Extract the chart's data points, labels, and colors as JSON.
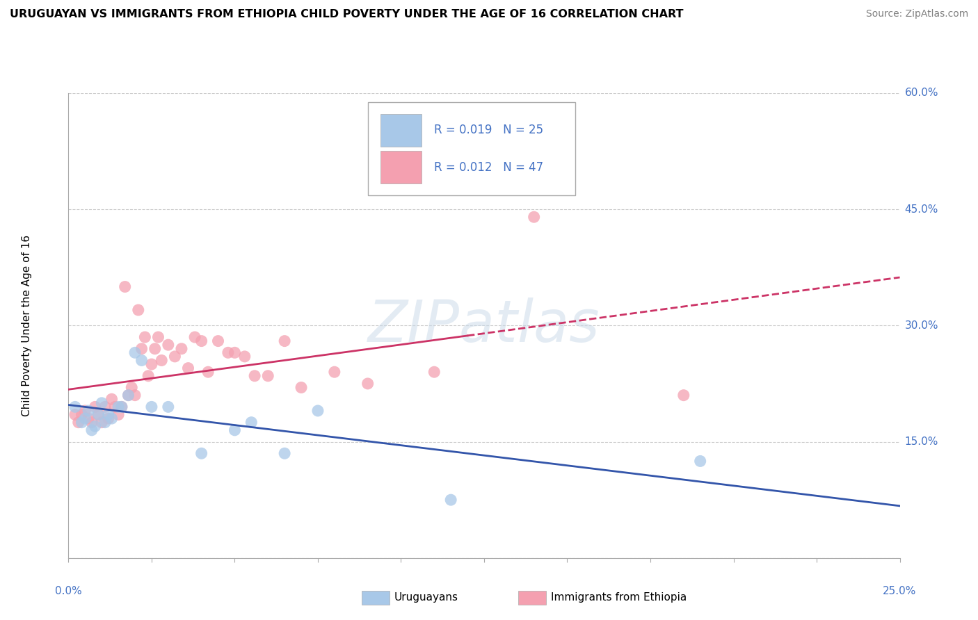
{
  "title": "URUGUAYAN VS IMMIGRANTS FROM ETHIOPIA CHILD POVERTY UNDER THE AGE OF 16 CORRELATION CHART",
  "source": "Source: ZipAtlas.com",
  "ylabel": "Child Poverty Under the Age of 16",
  "xlim": [
    0.0,
    0.25
  ],
  "ylim": [
    0.0,
    0.6
  ],
  "yticks": [
    0.0,
    0.15,
    0.3,
    0.45,
    0.6
  ],
  "ytick_labels": [
    "",
    "15.0%",
    "30.0%",
    "45.0%",
    "60.0%"
  ],
  "background_color": "#ffffff",
  "grid_color": "#cccccc",
  "uruguayan_color": "#a8c8e8",
  "ethiopia_color": "#f4a0b0",
  "uruguayan_R": 0.019,
  "uruguayan_N": 25,
  "ethiopia_R": 0.012,
  "ethiopia_N": 47,
  "trend_uru_color": "#3355aa",
  "trend_eth_color": "#cc3366",
  "uruguayan_x": [
    0.002,
    0.004,
    0.005,
    0.006,
    0.007,
    0.008,
    0.009,
    0.01,
    0.011,
    0.012,
    0.013,
    0.015,
    0.016,
    0.018,
    0.02,
    0.022,
    0.025,
    0.03,
    0.04,
    0.05,
    0.055,
    0.065,
    0.075,
    0.19,
    0.115
  ],
  "uruguayan_y": [
    0.195,
    0.175,
    0.18,
    0.19,
    0.165,
    0.17,
    0.185,
    0.2,
    0.175,
    0.185,
    0.18,
    0.195,
    0.195,
    0.21,
    0.265,
    0.255,
    0.195,
    0.195,
    0.135,
    0.165,
    0.175,
    0.135,
    0.19,
    0.125,
    0.075
  ],
  "ethiopia_x": [
    0.002,
    0.003,
    0.004,
    0.005,
    0.006,
    0.007,
    0.008,
    0.009,
    0.01,
    0.011,
    0.012,
    0.013,
    0.014,
    0.015,
    0.016,
    0.017,
    0.018,
    0.019,
    0.02,
    0.021,
    0.022,
    0.023,
    0.024,
    0.025,
    0.026,
    0.027,
    0.028,
    0.03,
    0.032,
    0.034,
    0.036,
    0.038,
    0.04,
    0.042,
    0.045,
    0.048,
    0.05,
    0.053,
    0.056,
    0.06,
    0.065,
    0.07,
    0.08,
    0.09,
    0.11,
    0.14,
    0.185
  ],
  "ethiopia_y": [
    0.185,
    0.175,
    0.185,
    0.19,
    0.18,
    0.175,
    0.195,
    0.185,
    0.175,
    0.195,
    0.18,
    0.205,
    0.195,
    0.185,
    0.195,
    0.35,
    0.21,
    0.22,
    0.21,
    0.32,
    0.27,
    0.285,
    0.235,
    0.25,
    0.27,
    0.285,
    0.255,
    0.275,
    0.26,
    0.27,
    0.245,
    0.285,
    0.28,
    0.24,
    0.28,
    0.265,
    0.265,
    0.26,
    0.235,
    0.235,
    0.28,
    0.22,
    0.24,
    0.225,
    0.24,
    0.44,
    0.21
  ]
}
